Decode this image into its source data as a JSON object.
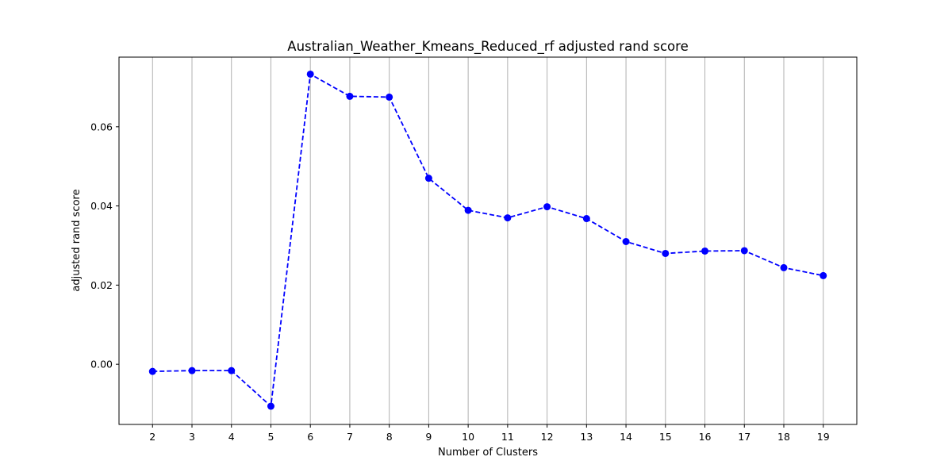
{
  "chart_data": {
    "type": "line",
    "title": "Australian_Weather_Kmeans_Reduced_rf adjusted rand score",
    "xlabel": "Number of Clusters",
    "ylabel": "adjusted rand score",
    "x": [
      2,
      3,
      4,
      5,
      6,
      7,
      8,
      9,
      10,
      11,
      12,
      13,
      14,
      15,
      16,
      17,
      18,
      19
    ],
    "series": [
      {
        "color": "#0000ff",
        "line_style": "dashed",
        "marker": "circle",
        "values": [
          -0.0018,
          -0.0016,
          -0.0016,
          -0.0106,
          0.0733,
          0.0677,
          0.0675,
          0.047,
          0.0389,
          0.037,
          0.0398,
          0.0368,
          0.031,
          0.028,
          0.0286,
          0.0287,
          0.0244,
          0.0224
        ]
      }
    ],
    "xlim": [
      1.15,
      19.85
    ],
    "ylim": [
      -0.0152,
      0.0776
    ],
    "x_ticks": [
      "2",
      "3",
      "4",
      "5",
      "6",
      "7",
      "8",
      "9",
      "10",
      "11",
      "12",
      "13",
      "14",
      "15",
      "16",
      "17",
      "18",
      "19"
    ],
    "y_ticks": [
      0.0,
      0.02,
      0.04,
      0.06
    ],
    "y_tick_labels": [
      "0.00",
      "0.02",
      "0.04",
      "0.06"
    ],
    "grid": "vertical",
    "grid_color": "#b0b0b0"
  }
}
